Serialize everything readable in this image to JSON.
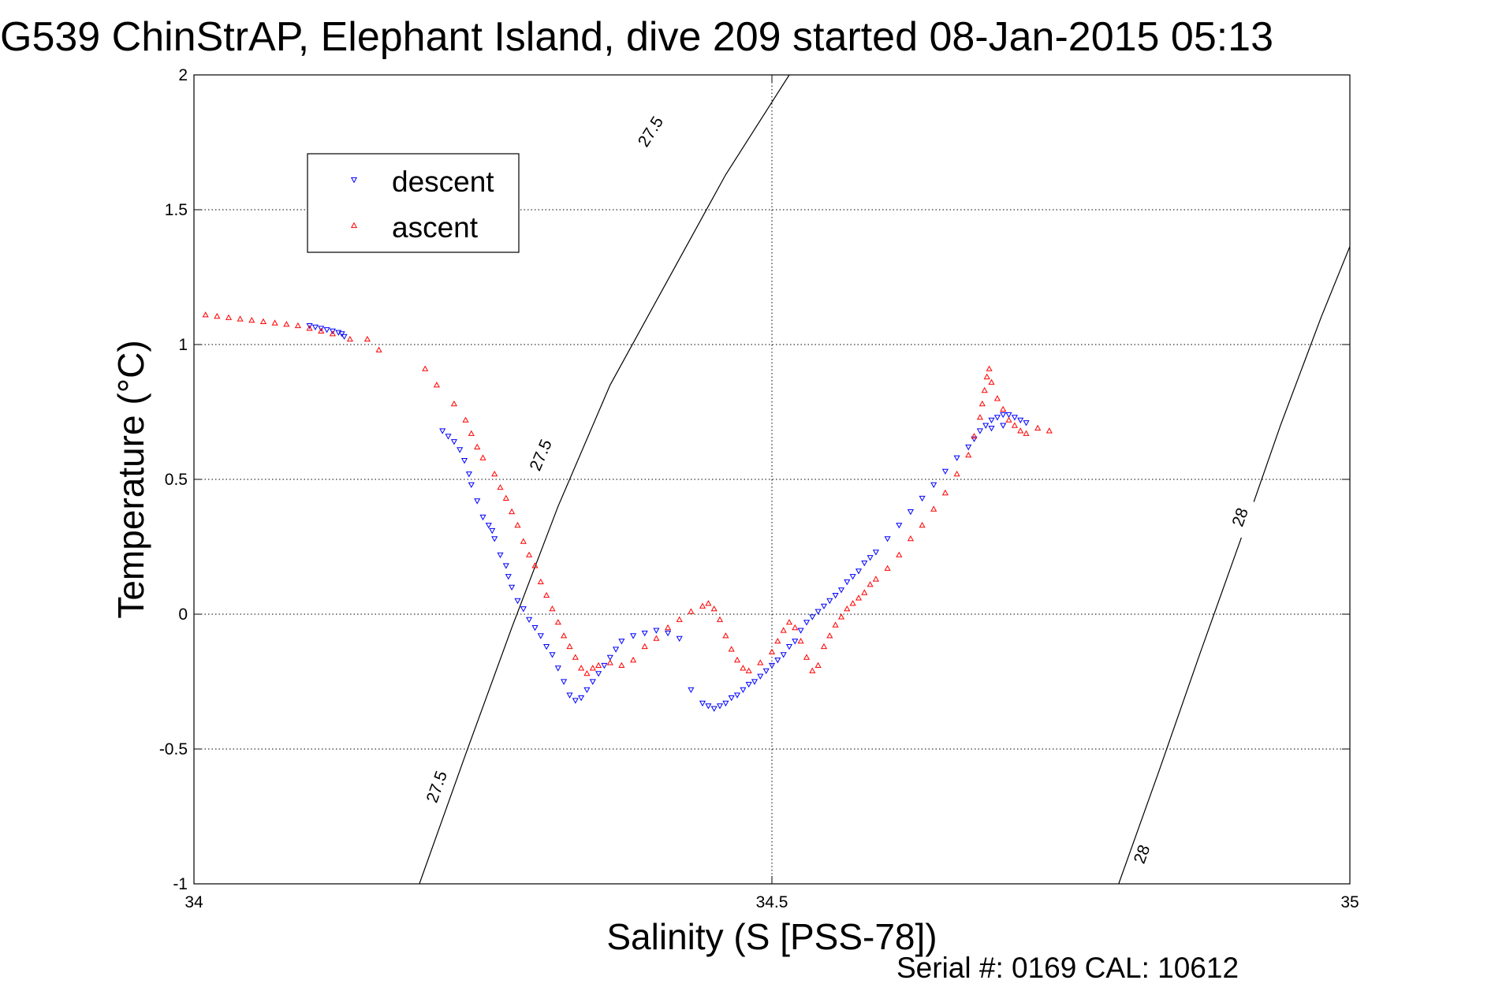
{
  "chart_data": {
    "type": "scatter",
    "title": "G539 ChinStrAP, Elephant Island, dive 209 started 08-Jan-2015 05:13",
    "xlabel": "Salinity (S [PSS-78])",
    "ylabel": "Temperature (°C)",
    "footer": "Serial #: 0169 CAL: 10612",
    "xlim": [
      34,
      35
    ],
    "ylim": [
      -1,
      2
    ],
    "x_ticks": [
      34,
      34.5,
      35
    ],
    "x_tick_labels": [
      "34",
      "34.5",
      "35"
    ],
    "y_ticks": [
      -1,
      -0.5,
      0,
      0.5,
      1,
      1.5,
      2
    ],
    "y_tick_labels": [
      "-1",
      "-0.5",
      "0",
      "0.5",
      "1",
      "1.5",
      "2"
    ],
    "grid": true,
    "legend_position": "top-left",
    "series": [
      {
        "name": "descent",
        "color": "#0000ff",
        "marker": "triangle-down",
        "x": [
          34.1,
          34.105,
          34.11,
          34.115,
          34.12,
          34.125,
          34.128,
          34.13,
          34.215,
          34.22,
          34.225,
          34.23,
          34.234,
          34.238,
          34.24,
          34.245,
          34.25,
          34.255,
          34.258,
          34.26,
          34.265,
          34.27,
          34.272,
          34.275,
          34.28,
          34.285,
          34.29,
          34.295,
          34.3,
          34.305,
          34.31,
          34.315,
          34.32,
          34.325,
          34.33,
          34.335,
          34.34,
          34.345,
          34.35,
          34.355,
          34.36,
          34.365,
          34.37,
          34.38,
          34.39,
          34.4,
          34.41,
          34.42,
          34.43,
          34.44,
          34.445,
          34.45,
          34.455,
          34.46,
          34.465,
          34.47,
          34.475,
          34.48,
          34.485,
          34.49,
          34.495,
          34.5,
          34.505,
          34.51,
          34.515,
          34.52,
          34.525,
          34.53,
          34.535,
          34.54,
          34.545,
          34.55,
          34.555,
          34.56,
          34.565,
          34.57,
          34.575,
          34.58,
          34.585,
          34.59,
          34.6,
          34.61,
          34.62,
          34.63,
          34.64,
          34.65,
          34.66,
          34.67,
          34.675,
          34.68,
          34.685,
          34.69,
          34.695,
          34.7,
          34.705,
          34.71,
          34.715,
          34.72,
          34.7,
          34.69
        ],
        "y": [
          1.07,
          1.065,
          1.06,
          1.055,
          1.05,
          1.045,
          1.04,
          1.03,
          0.68,
          0.66,
          0.64,
          0.61,
          0.57,
          0.52,
          0.48,
          0.42,
          0.36,
          0.33,
          0.31,
          0.28,
          0.22,
          0.18,
          0.14,
          0.1,
          0.05,
          0.02,
          -0.02,
          -0.05,
          -0.08,
          -0.12,
          -0.15,
          -0.2,
          -0.25,
          -0.3,
          -0.32,
          -0.31,
          -0.28,
          -0.25,
          -0.22,
          -0.19,
          -0.16,
          -0.13,
          -0.1,
          -0.08,
          -0.07,
          -0.06,
          -0.07,
          -0.09,
          -0.28,
          -0.33,
          -0.34,
          -0.35,
          -0.34,
          -0.33,
          -0.31,
          -0.3,
          -0.28,
          -0.26,
          -0.25,
          -0.23,
          -0.21,
          -0.19,
          -0.17,
          -0.15,
          -0.12,
          -0.1,
          -0.06,
          -0.03,
          -0.01,
          0.01,
          0.03,
          0.05,
          0.07,
          0.09,
          0.12,
          0.14,
          0.16,
          0.19,
          0.21,
          0.23,
          0.28,
          0.33,
          0.38,
          0.43,
          0.48,
          0.53,
          0.58,
          0.62,
          0.65,
          0.68,
          0.7,
          0.72,
          0.73,
          0.74,
          0.74,
          0.73,
          0.72,
          0.71,
          0.7,
          0.69
        ]
      },
      {
        "name": "ascent",
        "color": "#ff0000",
        "marker": "triangle-up",
        "x": [
          34.01,
          34.02,
          34.03,
          34.04,
          34.05,
          34.06,
          34.07,
          34.08,
          34.09,
          34.1,
          34.11,
          34.12,
          34.135,
          34.15,
          34.16,
          34.2,
          34.21,
          34.225,
          34.235,
          34.24,
          34.245,
          34.25,
          34.26,
          34.265,
          34.27,
          34.275,
          34.28,
          34.285,
          34.29,
          34.295,
          34.3,
          34.305,
          34.31,
          34.315,
          34.32,
          34.325,
          34.33,
          34.335,
          34.34,
          34.345,
          34.35,
          34.36,
          34.37,
          34.38,
          34.39,
          34.4,
          34.41,
          34.42,
          34.43,
          34.44,
          34.445,
          34.45,
          34.455,
          34.46,
          34.465,
          34.47,
          34.475,
          34.48,
          34.49,
          34.5,
          34.505,
          34.51,
          34.515,
          34.52,
          34.525,
          34.53,
          34.535,
          34.54,
          34.545,
          34.55,
          34.555,
          34.56,
          34.565,
          34.57,
          34.575,
          34.58,
          34.585,
          34.59,
          34.6,
          34.61,
          34.62,
          34.63,
          34.64,
          34.65,
          34.66,
          34.67,
          34.675,
          34.68,
          34.682,
          34.684,
          34.686,
          34.688,
          34.69,
          34.695,
          34.7,
          34.705,
          34.71,
          34.715,
          34.72,
          34.73,
          34.74
        ],
        "y": [
          1.11,
          1.105,
          1.1,
          1.095,
          1.09,
          1.085,
          1.08,
          1.075,
          1.07,
          1.06,
          1.05,
          1.04,
          1.02,
          1.02,
          0.98,
          0.91,
          0.85,
          0.78,
          0.72,
          0.67,
          0.62,
          0.58,
          0.52,
          0.47,
          0.43,
          0.38,
          0.33,
          0.27,
          0.22,
          0.18,
          0.12,
          0.07,
          0.02,
          -0.03,
          -0.08,
          -0.12,
          -0.16,
          -0.2,
          -0.22,
          -0.2,
          -0.19,
          -0.18,
          -0.19,
          -0.17,
          -0.12,
          -0.09,
          -0.05,
          -0.02,
          0.01,
          0.03,
          0.04,
          0.02,
          -0.02,
          -0.08,
          -0.13,
          -0.17,
          -0.2,
          -0.21,
          -0.18,
          -0.14,
          -0.1,
          -0.06,
          -0.03,
          -0.05,
          -0.1,
          -0.16,
          -0.21,
          -0.19,
          -0.12,
          -0.08,
          -0.04,
          -0.01,
          0.02,
          0.04,
          0.06,
          0.08,
          0.11,
          0.13,
          0.17,
          0.22,
          0.28,
          0.33,
          0.39,
          0.45,
          0.52,
          0.59,
          0.66,
          0.73,
          0.78,
          0.83,
          0.88,
          0.91,
          0.86,
          0.8,
          0.76,
          0.72,
          0.7,
          0.68,
          0.67,
          0.69,
          0.68
        ]
      }
    ],
    "contours": [
      {
        "label": "27.5",
        "label_positions": [
          [
            34.395,
            1.79
          ],
          [
            34.3,
            0.59
          ],
          [
            34.21,
            -0.64
          ]
        ],
        "x": [
          34.195,
          34.235,
          34.275,
          34.315,
          34.36,
          34.41,
          34.46,
          34.515
        ],
        "y": [
          -1,
          -0.52,
          -0.05,
          0.4,
          0.85,
          1.24,
          1.63,
          2
        ]
      },
      {
        "label": "28",
        "label_positions": [
          [
            34.905,
            0.36
          ],
          [
            34.82,
            -0.89
          ]
        ],
        "x": [
          34.8,
          34.835,
          34.87,
          34.905,
          34.94,
          34.975,
          35.01
        ],
        "y": [
          -1,
          -0.58,
          -0.15,
          0.27,
          0.7,
          1.1,
          1.47
        ]
      }
    ]
  }
}
